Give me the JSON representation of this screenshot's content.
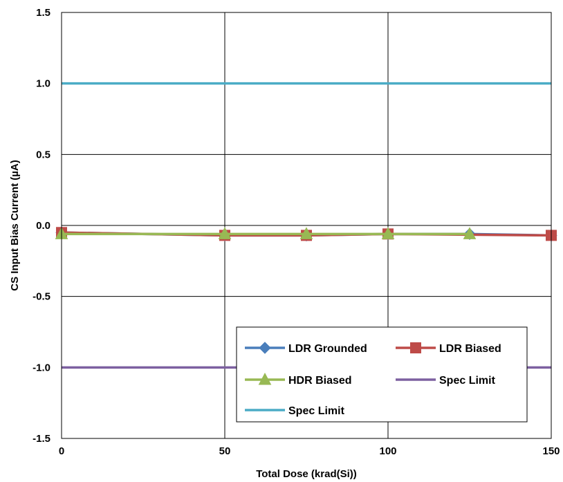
{
  "chart_data": {
    "type": "line",
    "title": "",
    "xlabel": "Total Dose (krad(Si))",
    "ylabel": "CS Input Bias Current (µA)",
    "xlim": [
      0,
      150
    ],
    "ylim": [
      -1.5,
      1.5
    ],
    "x_ticks": [
      "0",
      "50",
      "100",
      "150"
    ],
    "x_tick_values": [
      0,
      50,
      100,
      150
    ],
    "y_ticks": [
      "1.5",
      "1.0",
      "0.5",
      "0.0",
      "-0.5",
      "-1.0",
      "-1.5"
    ],
    "y_tick_values": [
      1.5,
      1.0,
      0.5,
      0.0,
      -0.5,
      -1.0,
      -1.5
    ],
    "grid": true,
    "legend_position": "bottom-right",
    "series": [
      {
        "name": "LDR Grounded",
        "color": "#4a7ebb",
        "marker": "diamond",
        "x": [
          0,
          50,
          75,
          100,
          125,
          150
        ],
        "y": [
          -0.05,
          -0.07,
          -0.07,
          -0.06,
          -0.06,
          -0.07
        ]
      },
      {
        "name": "LDR Biased",
        "color": "#be4b48",
        "marker": "square",
        "x": [
          0,
          50,
          75,
          100,
          150
        ],
        "y": [
          -0.05,
          -0.07,
          -0.07,
          -0.06,
          -0.07
        ]
      },
      {
        "name": "HDR Biased",
        "color": "#98b954",
        "marker": "triangle",
        "x": [
          0,
          50,
          75,
          100,
          125
        ],
        "y": [
          -0.06,
          -0.06,
          -0.06,
          -0.06,
          -0.06
        ]
      },
      {
        "name": "Spec Limit",
        "color": "#7d60a0",
        "marker": "none",
        "x": [
          0,
          150
        ],
        "y": [
          -1.0,
          -1.0
        ]
      },
      {
        "name": "Spec Limit",
        "color": "#4bacc6",
        "marker": "none",
        "x": [
          0,
          150
        ],
        "y": [
          1.0,
          1.0
        ]
      }
    ]
  }
}
